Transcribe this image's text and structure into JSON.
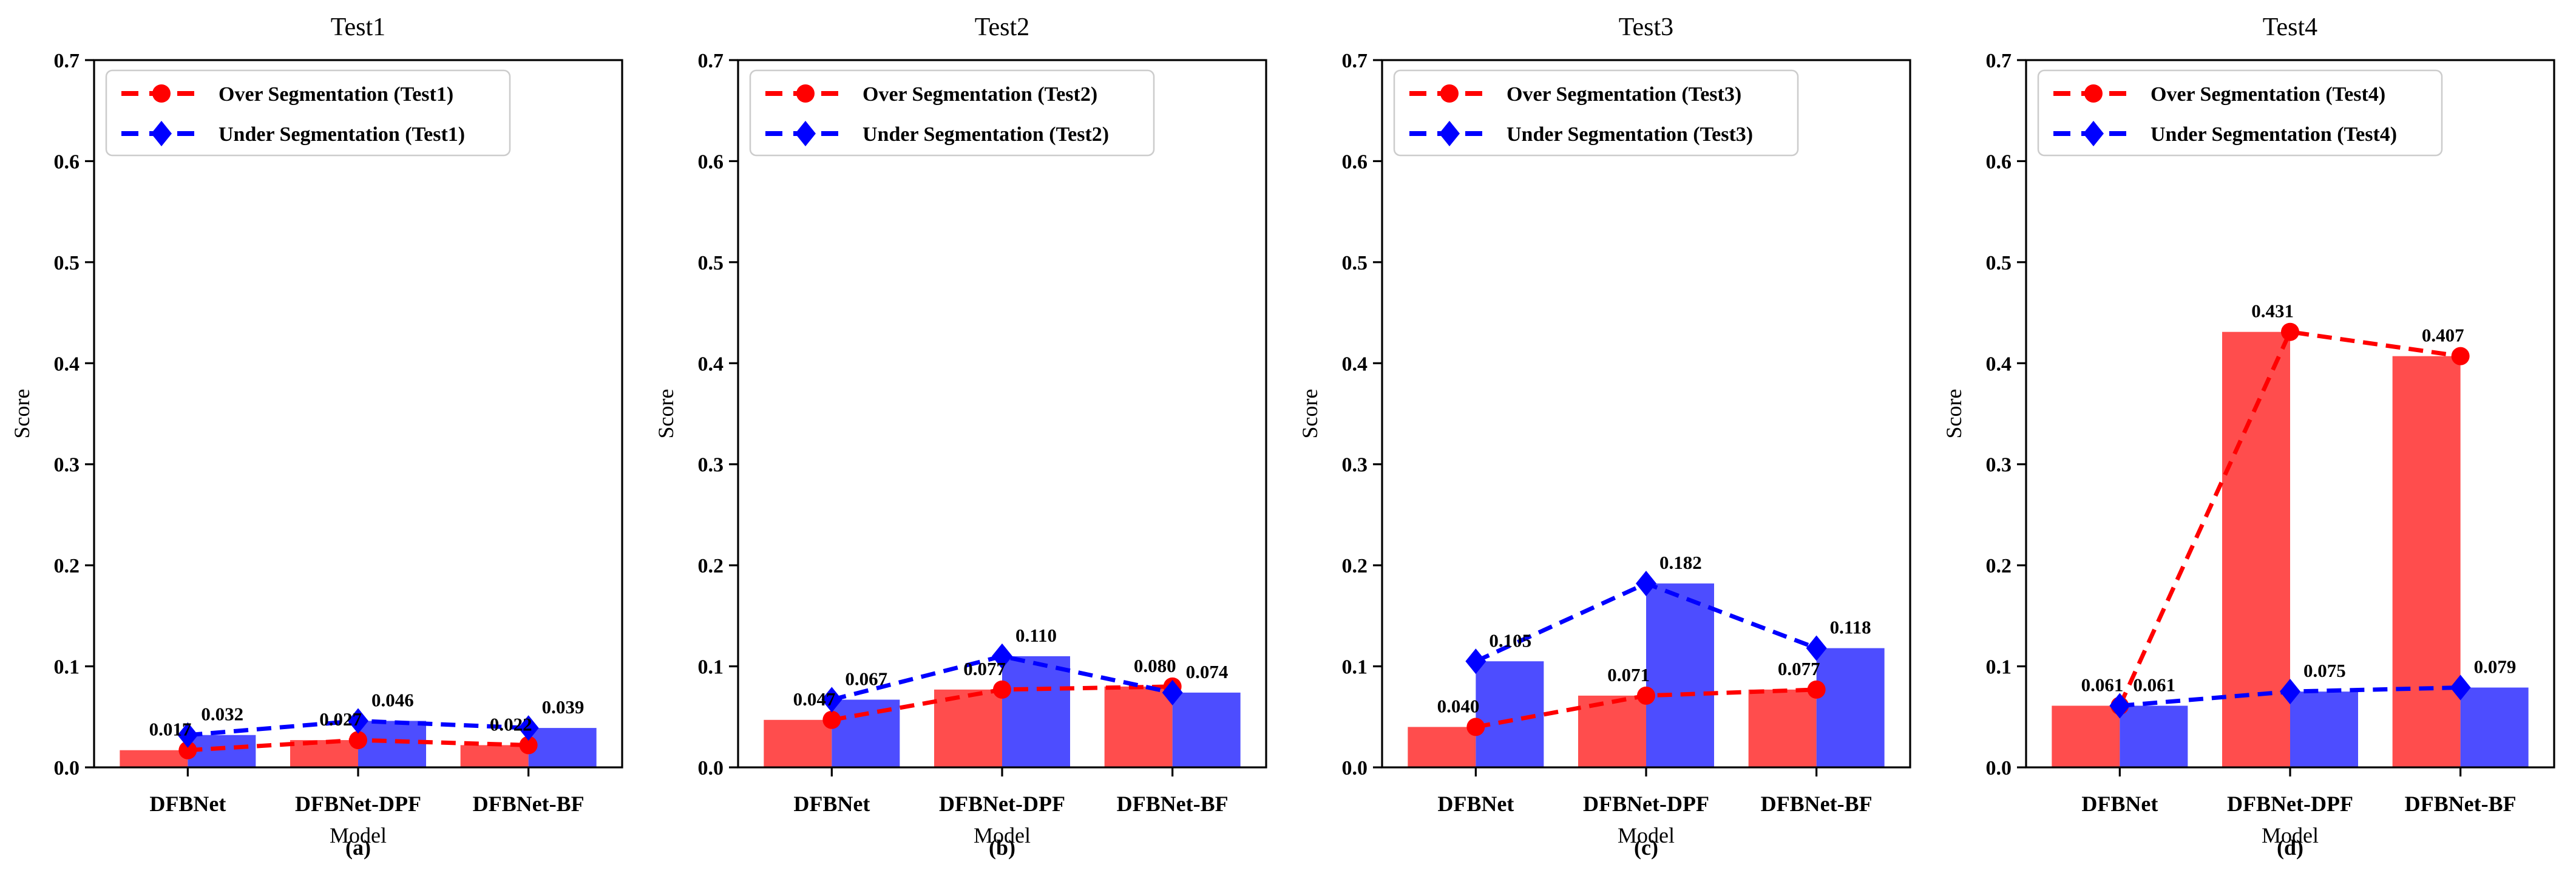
{
  "figure": {
    "ylabel": "Score",
    "xlabel": "Model",
    "categories": [
      "DFBNet",
      "DFBNet-DPF",
      "DFBNet-BF"
    ],
    "y_ticks": [
      "0.0",
      "0.1",
      "0.2",
      "0.3",
      "0.4",
      "0.5",
      "0.6",
      "0.7"
    ],
    "colors": {
      "over_bar": "#ff4d4d",
      "under_bar": "#4d4dff",
      "over_line": "#ff0000",
      "under_line": "#0000ff",
      "axis": "#000000",
      "legend_border": "#cccccc",
      "text": "#000000"
    }
  },
  "chart_data": [
    {
      "type": "bar",
      "title": "Test1",
      "caption": "(a)",
      "xlabel": "Model",
      "ylabel": "Score",
      "ylim": [
        0,
        0.7
      ],
      "categories": [
        "DFBNet",
        "DFBNet-DPF",
        "DFBNet-BF"
      ],
      "series": [
        {
          "name": "Over Segmentation (Test1)",
          "role": "over",
          "values": [
            0.017,
            0.027,
            0.022
          ]
        },
        {
          "name": "Under Segmentation (Test1)",
          "role": "under",
          "values": [
            0.032,
            0.046,
            0.039
          ]
        }
      ],
      "legend_position": "upper left",
      "grid": false
    },
    {
      "type": "bar",
      "title": "Test2",
      "caption": "(b)",
      "xlabel": "Model",
      "ylabel": "Score",
      "ylim": [
        0,
        0.7
      ],
      "categories": [
        "DFBNet",
        "DFBNet-DPF",
        "DFBNet-BF"
      ],
      "series": [
        {
          "name": "Over Segmentation (Test2)",
          "role": "over",
          "values": [
            0.047,
            0.077,
            0.08
          ]
        },
        {
          "name": "Under Segmentation (Test2)",
          "role": "under",
          "values": [
            0.067,
            0.11,
            0.074
          ]
        }
      ],
      "legend_position": "upper left",
      "grid": false
    },
    {
      "type": "bar",
      "title": "Test3",
      "caption": "(c)",
      "xlabel": "Model",
      "ylabel": "Score",
      "ylim": [
        0,
        0.7
      ],
      "categories": [
        "DFBNet",
        "DFBNet-DPF",
        "DFBNet-BF"
      ],
      "series": [
        {
          "name": "Over Segmentation (Test3)",
          "role": "over",
          "values": [
            0.04,
            0.071,
            0.077
          ]
        },
        {
          "name": "Under Segmentation (Test3)",
          "role": "under",
          "values": [
            0.105,
            0.182,
            0.118
          ]
        }
      ],
      "legend_position": "upper left",
      "grid": false
    },
    {
      "type": "bar",
      "title": "Test4",
      "caption": "(d)",
      "xlabel": "Model",
      "ylabel": "Score",
      "ylim": [
        0,
        0.7
      ],
      "categories": [
        "DFBNet",
        "DFBNet-DPF",
        "DFBNet-BF"
      ],
      "series": [
        {
          "name": "Over Segmentation (Test4)",
          "role": "over",
          "values": [
            0.061,
            0.431,
            0.407
          ]
        },
        {
          "name": "Under Segmentation (Test4)",
          "role": "under",
          "values": [
            0.061,
            0.075,
            0.079
          ]
        }
      ],
      "legend_position": "upper left",
      "grid": false
    }
  ]
}
